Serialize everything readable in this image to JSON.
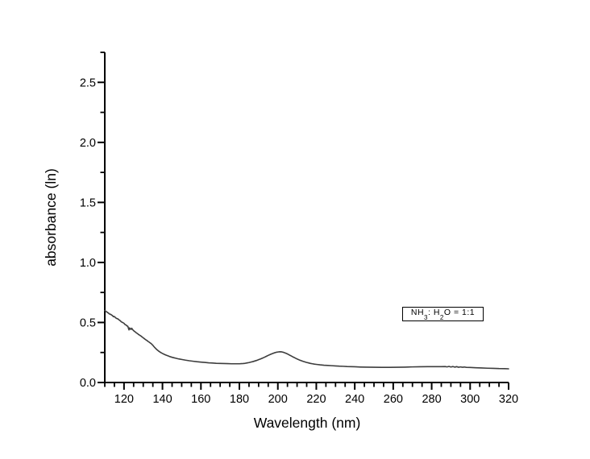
{
  "page": {
    "background": "#ffffff"
  },
  "chart_data": {
    "type": "line",
    "title": "",
    "xlabel": "Wavelength (nm)",
    "ylabel": "absorbance (ln)",
    "xlim": [
      110,
      320
    ],
    "ylim": [
      0,
      2.75
    ],
    "x_major_ticks": [
      120,
      140,
      160,
      180,
      200,
      220,
      240,
      260,
      280,
      300,
      320
    ],
    "x_minor_step": 5,
    "y_major_ticks": [
      0.0,
      0.5,
      1.0,
      1.5,
      2.0,
      2.5
    ],
    "y_minor_step": 0.25,
    "grid": false,
    "axis_color": "#000000",
    "line_color": "#3d3d3d",
    "legend": {
      "position": "inside-right",
      "text": "NH3: H2O = 1:1",
      "parts": {
        "base1": "NH",
        "sub1": "3",
        "mid": ": H",
        "sub2": "2",
        "tail": "O = 1:1"
      }
    },
    "series": [
      {
        "name": "NH3:H2O = 1:1",
        "x": [
          110,
          111,
          112,
          112.5,
          113,
          114,
          114.5,
          115,
          115.5,
          116,
          117,
          117.5,
          118,
          118.5,
          119,
          119.5,
          120,
          120.5,
          121,
          121.5,
          122,
          122.3,
          122.6,
          122.9,
          123.2,
          123.6,
          124,
          124.5,
          125,
          125.5,
          126,
          126.5,
          127,
          127.5,
          128,
          128.5,
          129,
          129.5,
          130,
          130.5,
          131,
          131.5,
          132,
          132.5,
          133,
          133.5,
          134,
          134.5,
          135,
          135.5,
          136,
          136.5,
          137,
          137.5,
          138,
          138.5,
          139,
          139.5,
          140,
          141,
          142,
          143,
          144,
          145,
          146,
          147,
          148,
          149,
          150,
          152,
          154,
          156,
          158,
          160,
          162,
          164,
          166,
          168,
          170,
          172,
          174,
          176,
          178,
          180,
          181,
          182,
          183,
          184,
          185,
          186,
          187,
          188,
          189,
          190,
          191,
          192,
          193,
          194,
          195,
          196,
          197,
          198,
          199,
          200,
          201,
          202,
          203,
          204,
          205,
          206,
          207,
          208,
          209,
          210,
          211,
          212,
          213,
          214,
          215,
          216,
          217,
          218,
          219,
          220,
          222,
          224,
          226,
          228,
          230,
          232,
          234,
          236,
          238,
          240,
          243,
          246,
          250,
          254,
          258,
          262,
          266,
          270,
          274,
          278,
          282,
          285,
          287,
          288,
          289,
          290,
          291,
          292,
          293,
          294,
          295,
          296,
          297,
          298,
          300,
          303,
          306,
          309,
          312,
          315,
          318,
          320
        ],
        "y": [
          0.6,
          0.588,
          0.577,
          0.57,
          0.568,
          0.557,
          0.548,
          0.55,
          0.541,
          0.535,
          0.528,
          0.52,
          0.515,
          0.507,
          0.502,
          0.498,
          0.493,
          0.483,
          0.48,
          0.472,
          0.468,
          0.452,
          0.438,
          0.455,
          0.448,
          0.442,
          0.452,
          0.44,
          0.432,
          0.425,
          0.42,
          0.412,
          0.408,
          0.4,
          0.396,
          0.39,
          0.385,
          0.378,
          0.372,
          0.366,
          0.36,
          0.354,
          0.349,
          0.342,
          0.337,
          0.331,
          0.326,
          0.318,
          0.31,
          0.3,
          0.291,
          0.283,
          0.275,
          0.268,
          0.262,
          0.256,
          0.251,
          0.246,
          0.242,
          0.234,
          0.227,
          0.221,
          0.215,
          0.21,
          0.206,
          0.202,
          0.198,
          0.195,
          0.192,
          0.186,
          0.181,
          0.177,
          0.173,
          0.17,
          0.167,
          0.164,
          0.162,
          0.16,
          0.159,
          0.158,
          0.157,
          0.156,
          0.156,
          0.156,
          0.157,
          0.158,
          0.16,
          0.163,
          0.166,
          0.17,
          0.174,
          0.179,
          0.184,
          0.19,
          0.196,
          0.203,
          0.21,
          0.218,
          0.226,
          0.233,
          0.24,
          0.246,
          0.251,
          0.254,
          0.256,
          0.255,
          0.251,
          0.245,
          0.238,
          0.229,
          0.221,
          0.212,
          0.204,
          0.196,
          0.189,
          0.183,
          0.177,
          0.172,
          0.167,
          0.163,
          0.159,
          0.156,
          0.153,
          0.151,
          0.147,
          0.144,
          0.142,
          0.14,
          0.138,
          0.136,
          0.135,
          0.133,
          0.132,
          0.131,
          0.129,
          0.128,
          0.127,
          0.126,
          0.126,
          0.127,
          0.128,
          0.13,
          0.131,
          0.132,
          0.132,
          0.132,
          0.133,
          0.13,
          0.134,
          0.129,
          0.133,
          0.128,
          0.132,
          0.127,
          0.13,
          0.127,
          0.129,
          0.126,
          0.125,
          0.123,
          0.121,
          0.119,
          0.118,
          0.116,
          0.115,
          0.114
        ]
      }
    ]
  }
}
